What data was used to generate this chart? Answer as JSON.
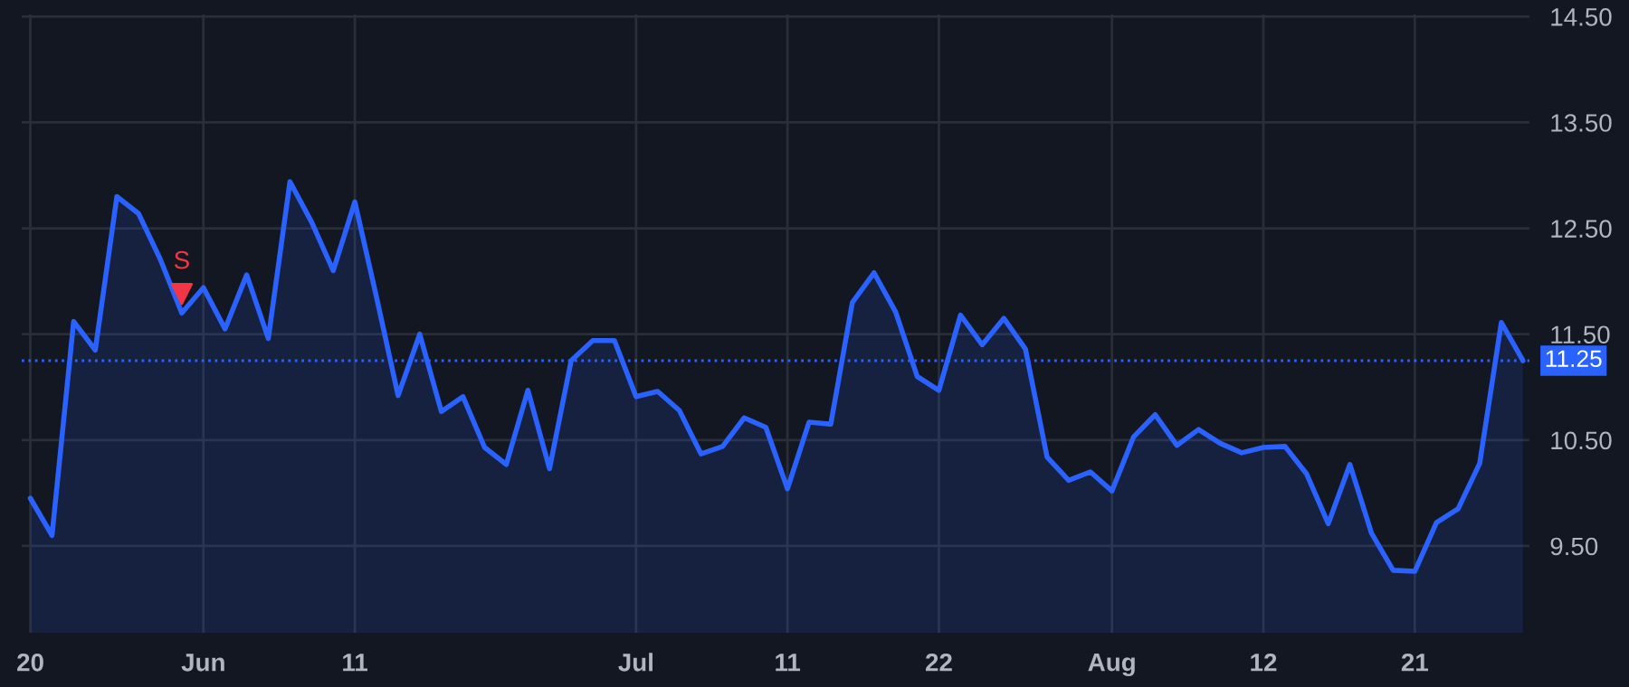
{
  "chart_data": {
    "type": "area",
    "categories": [
      "20",
      null,
      null,
      null,
      null,
      null,
      null,
      null,
      "Jun",
      null,
      null,
      null,
      null,
      null,
      null,
      "11",
      null,
      null,
      null,
      null,
      null,
      null,
      null,
      null,
      null,
      null,
      null,
      null,
      "Jul",
      null,
      null,
      null,
      null,
      null,
      null,
      "11",
      null,
      null,
      null,
      null,
      null,
      null,
      "22",
      null,
      null,
      null,
      null,
      null,
      null,
      null,
      "Aug",
      null,
      null,
      null,
      null,
      null,
      null,
      "12",
      null,
      null,
      null,
      null,
      null,
      null,
      "21",
      null,
      null,
      null,
      null,
      null
    ],
    "series": [
      {
        "color": "#2962ff",
        "values": [
          9.95,
          9.6,
          11.62,
          11.35,
          12.8,
          12.64,
          12.21,
          11.7,
          11.94,
          11.55,
          12.06,
          11.46,
          12.94,
          12.56,
          12.1,
          12.75,
          11.85,
          10.92,
          11.5,
          10.77,
          10.91,
          10.43,
          10.27,
          10.97,
          10.23,
          11.25,
          11.44,
          11.44,
          10.91,
          10.96,
          10.78,
          10.37,
          10.44,
          10.71,
          10.62,
          10.04,
          10.67,
          10.65,
          11.8,
          12.08,
          11.71,
          11.1,
          10.97,
          11.68,
          11.4,
          11.65,
          11.36,
          10.34,
          10.12,
          10.2,
          10.02,
          10.53,
          10.74,
          10.45,
          10.6,
          10.47,
          10.38,
          10.43,
          10.44,
          10.18,
          9.71,
          10.27,
          9.62,
          9.27,
          9.26,
          9.72,
          9.85,
          10.28,
          11.61,
          11.25
        ]
      },
      {
        "type": "scatter",
        "color": "#f23645",
        "marker": "triangle",
        "values": [
          null,
          null,
          null,
          null,
          null,
          null,
          null,
          11.88,
          null,
          null,
          null,
          null,
          null,
          null,
          null,
          null,
          null,
          null,
          null,
          null,
          null,
          null,
          null,
          null,
          null,
          null,
          null,
          null,
          null,
          null,
          null,
          null,
          null,
          null,
          null,
          null,
          null,
          null,
          null,
          null,
          null,
          null,
          null,
          null,
          null,
          null,
          null,
          null,
          null,
          null,
          null,
          null,
          null,
          null,
          null,
          null,
          null,
          null,
          null,
          null,
          null,
          null,
          null,
          null,
          null,
          null,
          null,
          null,
          null,
          null
        ],
        "value_labels": [
          null,
          null,
          null,
          null,
          null,
          null,
          null,
          "S",
          null,
          null,
          null,
          null,
          null,
          null,
          null,
          null,
          null,
          null,
          null,
          null,
          null,
          null,
          null,
          null,
          null,
          null,
          null,
          null,
          null,
          null,
          null,
          null,
          null,
          null,
          null,
          null,
          null,
          null,
          null,
          null,
          null,
          null,
          null,
          null,
          null,
          null,
          null,
          null,
          null,
          null,
          null,
          null,
          null,
          null,
          null,
          null,
          null,
          null,
          null,
          null,
          null,
          null,
          null,
          null,
          null,
          null,
          null,
          null,
          null,
          null
        ]
      }
    ],
    "ylim": [
      8.68,
      14.52
    ],
    "yticks": [
      {
        "value": 9.5,
        "label": "9.50"
      },
      {
        "value": 10.5,
        "label": "10.50"
      },
      {
        "value": 11.5,
        "label": "11.50"
      },
      {
        "value": 12.5,
        "label": "12.50"
      },
      {
        "value": 13.5,
        "label": "13.50"
      },
      {
        "value": 14.5,
        "label": "14.50"
      }
    ],
    "ref_lines": [
      {
        "axis": "y",
        "value": 11.25,
        "label": "11.25",
        "color": "#2962ff",
        "line_style": "dotted"
      }
    ],
    "grid": true
  }
}
